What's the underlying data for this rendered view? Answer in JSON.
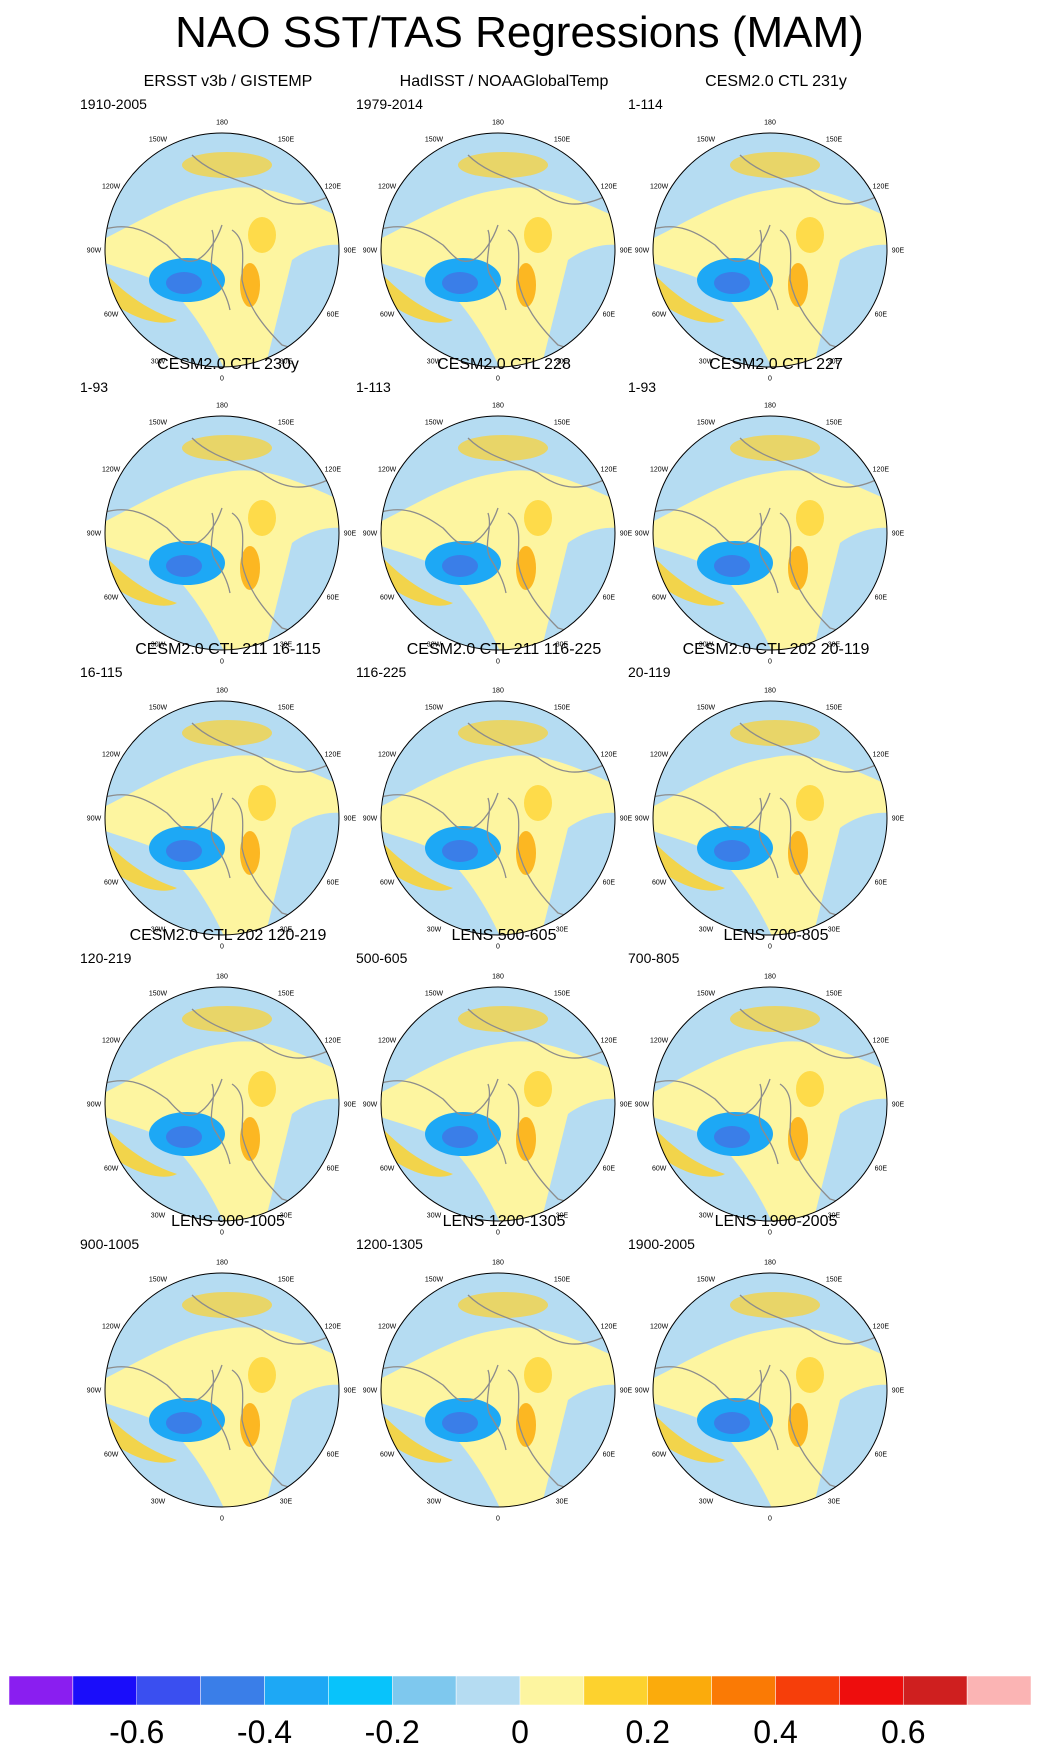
{
  "title": "NAO SST/TAS Regressions (MAM)",
  "lon_labels": [
    "180",
    "150E",
    "120E",
    "90E",
    "60E",
    "30E",
    "0",
    "30W",
    "60W",
    "90W",
    "120W",
    "150W"
  ],
  "colors": {
    "land": "#fdf5a0",
    "ocean": "#b5dcf2",
    "coast": "#8c8c8c"
  },
  "panels": [
    {
      "title": "ERSST v3b / GISTEMP",
      "period": "1910-2005"
    },
    {
      "title": "HadISST / NOAAGlobalTemp",
      "period": "1979-2014"
    },
    {
      "title": "CESM2.0 CTL 231y",
      "period": "1-114"
    },
    {
      "title": "CESM2.0 CTL 230y",
      "period": "1-93"
    },
    {
      "title": "CESM2.0 CTL 228",
      "period": "1-113"
    },
    {
      "title": "CESM2.0 CTL 227",
      "period": "1-93"
    },
    {
      "title": "CESM2.0 CTL 211 16-115",
      "period": "16-115"
    },
    {
      "title": "CESM2.0 CTL 211 116-225",
      "period": "116-225"
    },
    {
      "title": "CESM2.0 CTL 202 20-119",
      "period": "20-119"
    },
    {
      "title": "CESM2.0 CTL 202 120-219",
      "period": "120-219"
    },
    {
      "title": "LENS 500-605",
      "period": "500-605"
    },
    {
      "title": "LENS 700-805",
      "period": "700-805"
    },
    {
      "title": "LENS 900-1005",
      "period": "900-1005"
    },
    {
      "title": "LENS 1200-1305",
      "period": "1200-1305"
    },
    {
      "title": "LENS 1900-2005",
      "period": "1900-2005"
    }
  ],
  "colorbar": {
    "colors": [
      "#8a1ef0",
      "#1a0dfa",
      "#3a4ff0",
      "#3a7ee8",
      "#1da8f5",
      "#08c3fb",
      "#7ec8ee",
      "#b5dcf2",
      "#fdf5a0",
      "#fdd22e",
      "#fbab0c",
      "#fa7a05",
      "#f63e0a",
      "#ee0d0d",
      "#cf1f1f",
      "#fbb4b4"
    ],
    "tick_labels": [
      "-0.6",
      "-0.4",
      "-0.2",
      "0",
      "0.2",
      "0.4",
      "0.6"
    ]
  }
}
